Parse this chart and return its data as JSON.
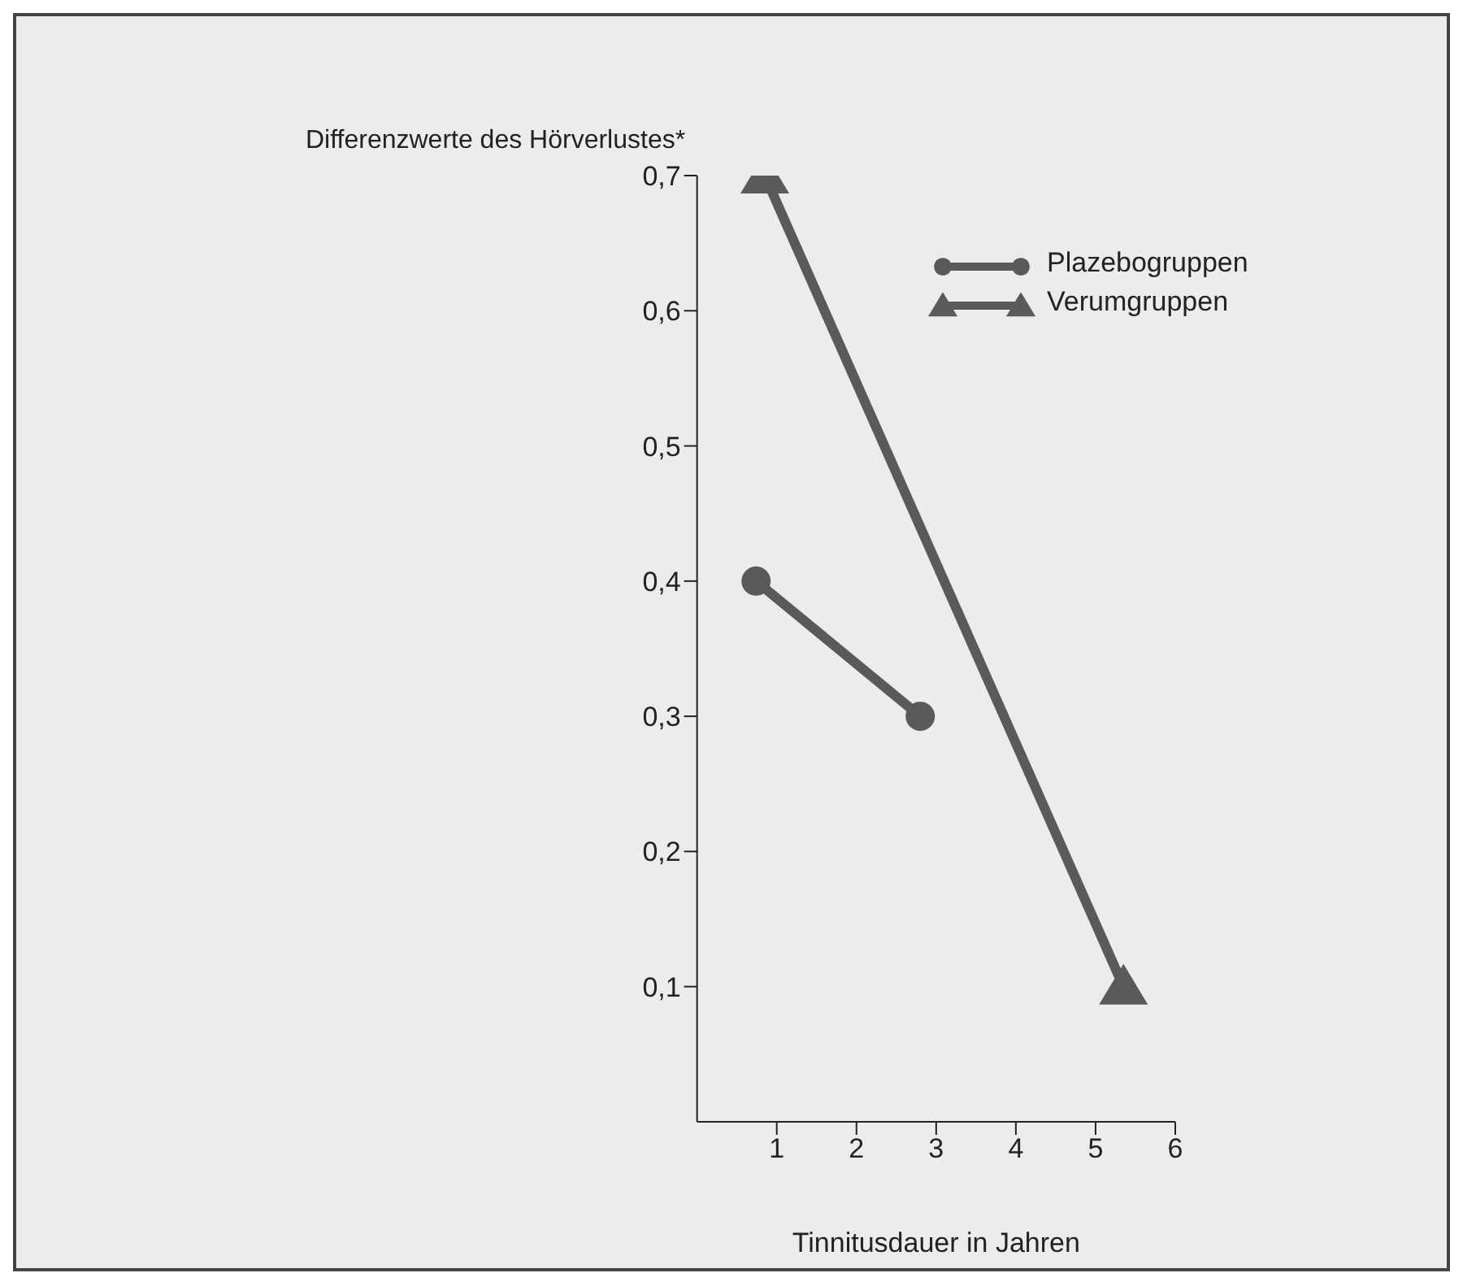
{
  "chart_data": {
    "type": "line",
    "xlabel": "Tinnitusdauer in Jahren",
    "ylabel": "Differenzwerte des Hörverlustes*",
    "xlim": [
      0,
      6
    ],
    "xticks": [
      1,
      2,
      3,
      4,
      5,
      6
    ],
    "ylim": [
      0,
      0.7
    ],
    "yticks": [
      {
        "value": 0.1,
        "label": "0,1"
      },
      {
        "value": 0.2,
        "label": "0,2"
      },
      {
        "value": 0.3,
        "label": "0,3"
      },
      {
        "value": 0.4,
        "label": "0,4"
      },
      {
        "value": 0.5,
        "label": "0,5"
      },
      {
        "value": 0.6,
        "label": "0,6"
      },
      {
        "value": 0.7,
        "label": "0,7"
      }
    ],
    "series": [
      {
        "name": "Plazebogruppen",
        "color": "#5a5a5a",
        "x": [
          0.74,
          2.8
        ],
        "values": [
          0.4,
          0.3
        ],
        "marker": "circle"
      },
      {
        "name": "Verumgruppen",
        "color": "#5a5a5a",
        "x": [
          0.85,
          5.35
        ],
        "values": [
          0.7,
          0.1
        ],
        "marker": "triangle"
      }
    ],
    "legend": "top right",
    "grid": false,
    "line_style": "solid"
  }
}
